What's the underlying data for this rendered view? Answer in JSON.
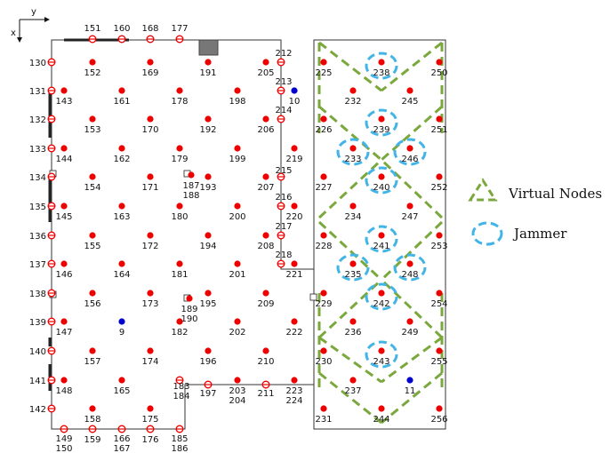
{
  "axes": {
    "x_label": "x",
    "y_label": "y"
  },
  "legend": {
    "virtual_nodes_label": "Virtual Nodes",
    "jammer_label": "Jammer",
    "virtual_color": "#7aa83c",
    "jammer_color": "#42b4e6"
  },
  "colors": {
    "node": "#ee0000",
    "special_node": "#0000cc",
    "wall": "#222222"
  },
  "grid_nodes": [
    {
      "id": "152",
      "col": 2,
      "row": 1
    },
    {
      "id": "169",
      "col": 3,
      "row": 1
    },
    {
      "id": "191",
      "col": 4,
      "row": 1
    },
    {
      "id": "205",
      "col": 5,
      "row": 1
    },
    {
      "id": "143",
      "col": 0,
      "row": 2
    },
    {
      "id": "161",
      "col": 2,
      "row": 2
    },
    {
      "id": "178",
      "col": 3,
      "row": 2
    },
    {
      "id": "198",
      "col": 4,
      "row": 2
    },
    {
      "id": "153",
      "col": 1,
      "row": 3
    },
    {
      "id": "170",
      "col": 2,
      "row": 3
    },
    {
      "id": "192",
      "col": 3,
      "row": 3
    },
    {
      "id": "206",
      "col": 5,
      "row": 3
    },
    {
      "id": "144",
      "col": 0,
      "row": 4
    },
    {
      "id": "162",
      "col": 1,
      "row": 4
    },
    {
      "id": "179",
      "col": 2,
      "row": 4
    },
    {
      "id": "199",
      "col": 3,
      "row": 4
    },
    {
      "id": "219",
      "col": 5,
      "row": 4
    },
    {
      "id": "154",
      "col": 1,
      "row": 5
    },
    {
      "id": "171",
      "col": 2,
      "row": 5
    },
    {
      "id": "193",
      "col": 3,
      "row": 5
    },
    {
      "id": "207",
      "col": 5,
      "row": 5
    },
    {
      "id": "145",
      "col": 0,
      "row": 6
    },
    {
      "id": "163",
      "col": 1,
      "row": 6
    },
    {
      "id": "180",
      "col": 2,
      "row": 6
    },
    {
      "id": "200",
      "col": 3,
      "row": 6
    },
    {
      "id": "220",
      "col": 5,
      "row": 6
    },
    {
      "id": "155",
      "col": 1,
      "row": 7
    },
    {
      "id": "172",
      "col": 2,
      "row": 7
    },
    {
      "id": "194",
      "col": 3,
      "row": 7
    },
    {
      "id": "208",
      "col": 4,
      "row": 7
    },
    {
      "id": "146",
      "col": 0,
      "row": 8
    },
    {
      "id": "164",
      "col": 1,
      "row": 8
    },
    {
      "id": "181",
      "col": 2,
      "row": 8
    },
    {
      "id": "201",
      "col": 3,
      "row": 8
    },
    {
      "id": "221",
      "col": 5,
      "row": 8
    },
    {
      "id": "156",
      "col": 1,
      "row": 9
    },
    {
      "id": "173",
      "col": 2,
      "row": 9
    },
    {
      "id": "195",
      "col": 3,
      "row": 9
    },
    {
      "id": "209",
      "col": 4,
      "row": 9
    },
    {
      "id": "147",
      "col": 0,
      "row": 10
    },
    {
      "id": "182",
      "col": 2,
      "row": 10
    },
    {
      "id": "202",
      "col": 3,
      "row": 10
    },
    {
      "id": "222",
      "col": 5,
      "row": 10
    },
    {
      "id": "157",
      "col": 1,
      "row": 11
    },
    {
      "id": "174",
      "col": 2,
      "row": 11
    },
    {
      "id": "196",
      "col": 3,
      "row": 11
    },
    {
      "id": "210",
      "col": 4,
      "row": 11
    },
    {
      "id": "148",
      "col": 0,
      "row": 12
    },
    {
      "id": "165",
      "col": 1,
      "row": 12
    },
    {
      "id": "158",
      "col": 1,
      "row": 13
    },
    {
      "id": "175",
      "col": 2,
      "row": 13
    }
  ],
  "free_nodes": [
    {
      "id": "10",
      "kind": "special"
    },
    {
      "id": "9",
      "kind": "special"
    },
    {
      "id": "11",
      "kind": "special"
    },
    {
      "id": "187\n188",
      "kind": "normal"
    },
    {
      "id": "189\n190",
      "kind": "normal"
    },
    {
      "id": "203\n204",
      "kind": "normal"
    },
    {
      "id": "223\n224",
      "kind": "normal"
    }
  ],
  "wall_nodes": [
    {
      "id": "151"
    },
    {
      "id": "160"
    },
    {
      "id": "168"
    },
    {
      "id": "177"
    },
    {
      "id": "130"
    },
    {
      "id": "131"
    },
    {
      "id": "132"
    },
    {
      "id": "133"
    },
    {
      "id": "134"
    },
    {
      "id": "135"
    },
    {
      "id": "136"
    },
    {
      "id": "137"
    },
    {
      "id": "138"
    },
    {
      "id": "139"
    },
    {
      "id": "140"
    },
    {
      "id": "141"
    },
    {
      "id": "142"
    },
    {
      "id": "212"
    },
    {
      "id": "213"
    },
    {
      "id": "214"
    },
    {
      "id": "215"
    },
    {
      "id": "216"
    },
    {
      "id": "217"
    },
    {
      "id": "218"
    },
    {
      "id": "149\n150"
    },
    {
      "id": "159"
    },
    {
      "id": "166\n167"
    },
    {
      "id": "176"
    },
    {
      "id": "185\n186"
    },
    {
      "id": "183\n184"
    },
    {
      "id": "197"
    },
    {
      "id": "211"
    }
  ],
  "right_nodes": [
    {
      "id": "225"
    },
    {
      "id": "238"
    },
    {
      "id": "250"
    },
    {
      "id": "232"
    },
    {
      "id": "245"
    },
    {
      "id": "226"
    },
    {
      "id": "239"
    },
    {
      "id": "251"
    },
    {
      "id": "233"
    },
    {
      "id": "246"
    },
    {
      "id": "227"
    },
    {
      "id": "240"
    },
    {
      "id": "252"
    },
    {
      "id": "234"
    },
    {
      "id": "247"
    },
    {
      "id": "228"
    },
    {
      "id": "241"
    },
    {
      "id": "253"
    },
    {
      "id": "235"
    },
    {
      "id": "248"
    },
    {
      "id": "229"
    },
    {
      "id": "242"
    },
    {
      "id": "254"
    },
    {
      "id": "236"
    },
    {
      "id": "249"
    },
    {
      "id": "230"
    },
    {
      "id": "243"
    },
    {
      "id": "255"
    },
    {
      "id": "237"
    },
    {
      "id": "231"
    },
    {
      "id": "244"
    },
    {
      "id": "256"
    }
  ],
  "jammers": [
    "238",
    "239",
    "233",
    "246",
    "240",
    "241",
    "235",
    "248",
    "242",
    "243"
  ]
}
